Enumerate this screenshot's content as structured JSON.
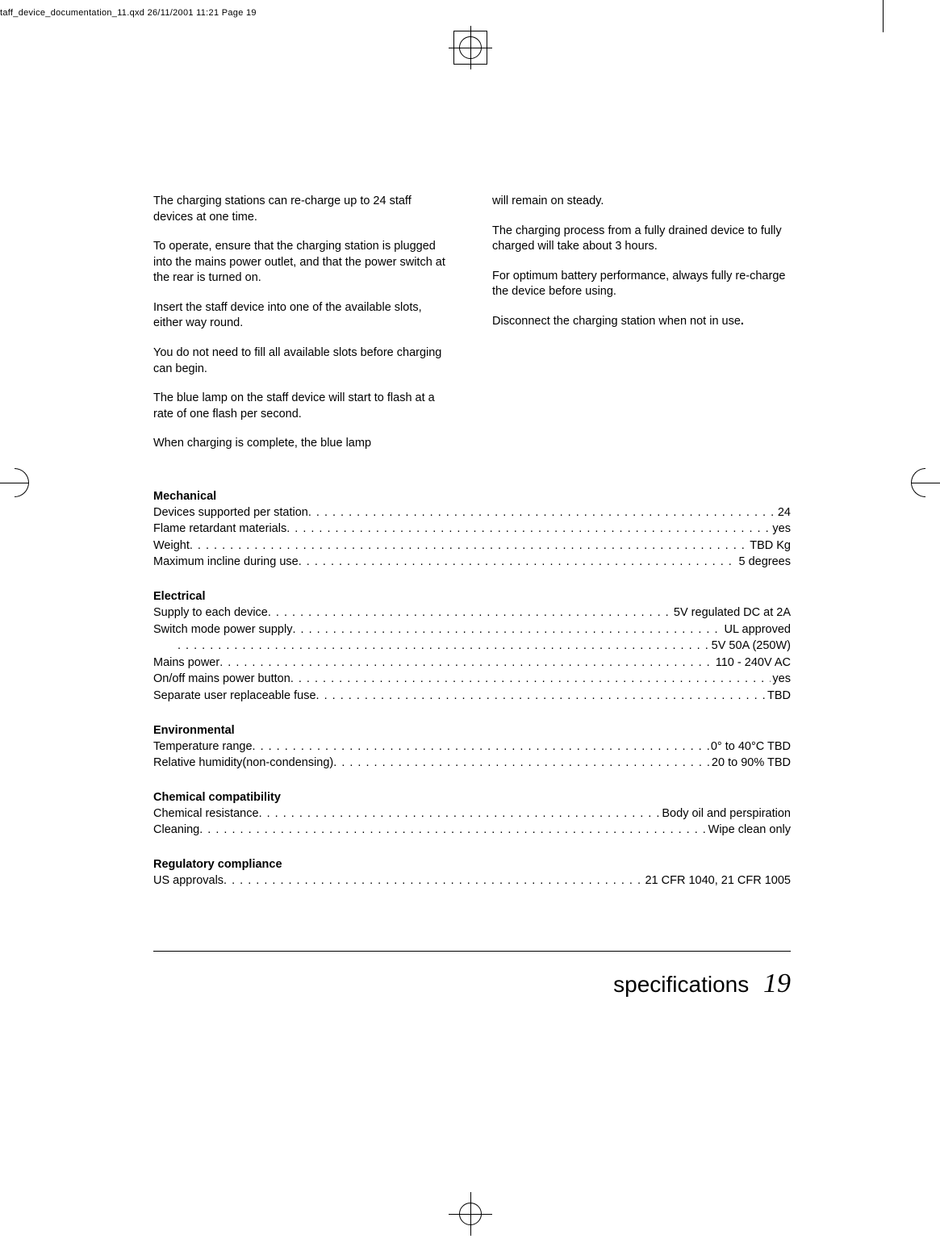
{
  "fileHeader": "taff_device_documentation_11.qxd  26/11/2001  11:21  Page 19",
  "leftCol": {
    "p1": "The charging stations can re-charge up to 24 staff devices at one time.",
    "p2": "To operate, ensure that the charging station is plugged into the mains power outlet, and that the power switch at the rear is turned on.",
    "p3": "Insert the staff device into one of the available slots, either way round.",
    "p4": "You do not need to fill all available slots before charging can begin.",
    "p5": "The blue lamp on the staff device will start to flash at a rate of one flash per second.",
    "p6": "When charging is complete, the blue lamp"
  },
  "rightCol": {
    "p1": "will remain on steady.",
    "p2": "The charging process from a fully drained device to fully charged will take about 3 hours.",
    "p3": "For optimum battery performance, always fully re-charge the device before using.",
    "p4a": "Disconnect the charging station when not in use",
    "p4b": "."
  },
  "mechanical": {
    "heading": "Mechanical",
    "r1l": "Devices supported per station",
    "r1v": "24",
    "r2l": "Flame retardant materials",
    "r2v": "yes",
    "r3l": "Weight",
    "r3v": "TBD Kg",
    "r4l": "Maximum incline during use",
    "r4v": "5 degrees"
  },
  "electrical": {
    "heading": "Electrical",
    "r1l": "Supply to each device",
    "r1v": "5V regulated DC at 2A",
    "r2l": "Switch mode power supply",
    "r2v": "UL approved",
    "r3v": "5V 50A (250W)",
    "r4l": "Mains power",
    "r4v": "110 - 240V AC",
    "r5l": "On/off mains power button",
    "r5v": "yes",
    "r6l": "Separate user replaceable fuse",
    "r6v": "TBD"
  },
  "environmental": {
    "heading": "Environmental",
    "r1l": "Temperature range",
    "r1v": "0° to 40°C TBD",
    "r2l": "Relative humidity(non-condensing)",
    "r2v": "20 to 90% TBD"
  },
  "chemical": {
    "heading": "Chemical compatibility",
    "r1l": "Chemical resistance",
    "r1v": "Body oil and perspiration",
    "r2l": "Cleaning",
    "r2v": "Wipe clean only"
  },
  "regulatory": {
    "heading": "Regulatory compliance",
    "r1l": "US approvals",
    "r1v": "21 CFR 1040, 21 CFR 1005"
  },
  "footer": {
    "title": "specifications",
    "pageNum": "19"
  }
}
